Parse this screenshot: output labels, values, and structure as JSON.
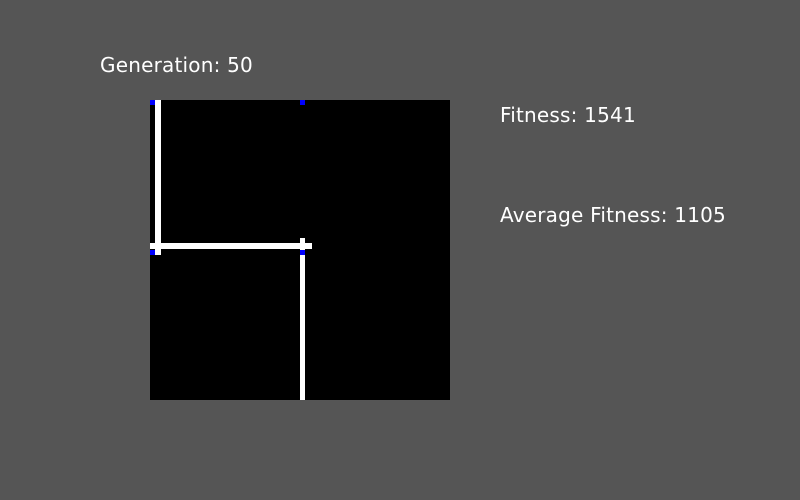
{
  "hud": {
    "generation_label": "Generation:",
    "generation": "50",
    "fitness_label": "Fitness:",
    "fitness": "1541",
    "average_fitness_label": "Average Fitness:",
    "average_fitness": "1105"
  },
  "colors": {
    "background": "#555555",
    "board": "#000000",
    "wall": "#ffffff",
    "node": "#0000ff",
    "text": "#ffffff"
  }
}
